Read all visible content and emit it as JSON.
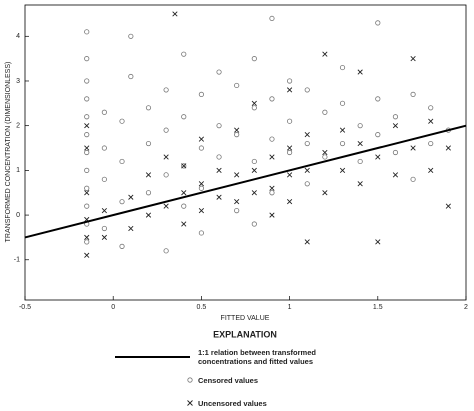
{
  "chart_data": {
    "type": "scatter",
    "xlabel": "FITTED VALUE",
    "ylabel": "TRANSFORMED CONCENTRATION (DIMENSIONLESS)",
    "legend_title": "EXPLANATION",
    "xlim": [
      -0.5,
      2
    ],
    "ylim": [
      -1.9,
      4.7
    ],
    "xticks": [
      -0.5,
      0,
      0.5,
      1,
      1.5,
      2
    ],
    "yticks": [
      -1,
      0,
      1,
      2,
      3,
      4
    ],
    "series": [
      {
        "name": "1:1 relation between transformed concentrations and fitted values",
        "marker": "line",
        "color": "#000000",
        "x": [
          -0.5,
          2
        ],
        "values": [
          -0.5,
          2
        ]
      },
      {
        "name": "Censored values",
        "marker": "circle",
        "color": "#777777",
        "x": [
          -0.15,
          -0.15,
          -0.15,
          -0.15,
          -0.15,
          -0.15,
          -0.15,
          -0.15,
          -0.15,
          -0.15,
          -0.15,
          -0.15,
          -0.05,
          -0.05,
          -0.05,
          -0.05,
          0.05,
          0.05,
          0.05,
          0.05,
          0.1,
          0.1,
          0.2,
          0.2,
          0.2,
          0.3,
          0.3,
          0.3,
          0.3,
          0.4,
          0.4,
          0.4,
          0.4,
          0.5,
          0.5,
          0.5,
          0.5,
          0.6,
          0.6,
          0.6,
          0.7,
          0.7,
          0.7,
          0.8,
          0.8,
          0.8,
          0.8,
          0.9,
          0.9,
          0.9,
          0.9,
          1.0,
          1.0,
          1.0,
          1.1,
          1.1,
          1.1,
          1.2,
          1.2,
          1.3,
          1.3,
          1.3,
          1.4,
          1.4,
          1.5,
          1.5,
          1.5,
          1.6,
          1.6,
          1.7,
          1.7,
          1.8,
          1.8,
          1.9
        ],
        "values": [
          4.1,
          3.5,
          3.0,
          2.6,
          2.2,
          1.8,
          1.4,
          1.0,
          0.6,
          0.2,
          -0.2,
          -0.6,
          2.3,
          1.5,
          0.8,
          -0.3,
          2.1,
          1.2,
          0.3,
          -0.7,
          4.0,
          3.1,
          2.4,
          1.6,
          0.5,
          2.8,
          1.9,
          0.9,
          -0.8,
          3.6,
          2.2,
          1.1,
          0.2,
          2.7,
          1.5,
          0.6,
          -0.4,
          3.2,
          2.0,
          1.3,
          2.9,
          1.8,
          0.1,
          3.5,
          2.4,
          1.2,
          -0.2,
          4.4,
          2.6,
          1.7,
          0.5,
          3.0,
          2.1,
          1.4,
          2.8,
          1.6,
          0.7,
          2.3,
          1.3,
          3.3,
          2.5,
          1.6,
          2.0,
          1.2,
          4.3,
          2.6,
          1.8,
          2.2,
          1.4,
          2.7,
          0.8,
          2.4,
          1.6,
          1.9
        ]
      },
      {
        "name": "Uncensored values",
        "marker": "x",
        "color": "#222222",
        "x": [
          -0.15,
          -0.15,
          -0.15,
          -0.15,
          -0.15,
          -0.15,
          -0.05,
          -0.05,
          0.1,
          0.1,
          0.2,
          0.2,
          0.3,
          0.3,
          0.35,
          0.4,
          0.4,
          0.4,
          0.5,
          0.5,
          0.5,
          0.6,
          0.6,
          0.7,
          0.7,
          0.7,
          0.8,
          0.8,
          0.8,
          0.9,
          0.9,
          0.9,
          1.0,
          1.0,
          1.0,
          1.0,
          1.1,
          1.1,
          1.1,
          1.2,
          1.2,
          1.2,
          1.3,
          1.3,
          1.4,
          1.4,
          1.4,
          1.5,
          1.5,
          1.6,
          1.6,
          1.7,
          1.7,
          1.8,
          1.8,
          1.9,
          1.9
        ],
        "values": [
          1.5,
          0.5,
          -0.1,
          -0.5,
          -0.9,
          2.0,
          0.1,
          -0.5,
          0.4,
          -0.3,
          0.9,
          0.0,
          1.3,
          0.2,
          4.5,
          1.1,
          0.5,
          -0.2,
          1.7,
          0.7,
          0.1,
          1.0,
          0.4,
          1.9,
          0.9,
          0.3,
          2.5,
          1.0,
          0.5,
          1.3,
          0.6,
          0.0,
          2.8,
          1.5,
          0.9,
          0.3,
          1.8,
          1.0,
          -0.6,
          3.6,
          1.4,
          0.5,
          1.9,
          1.0,
          3.2,
          1.6,
          0.7,
          1.3,
          -0.6,
          2.0,
          0.9,
          3.5,
          1.5,
          2.1,
          1.0,
          1.5,
          0.2
        ]
      }
    ]
  }
}
